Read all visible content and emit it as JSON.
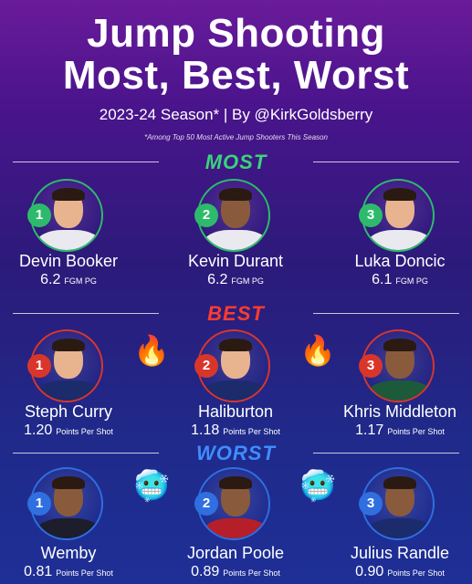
{
  "header": {
    "title_line1": "Jump Shooting",
    "title_line2": "Most, Best, Worst",
    "subtitle": "2023-24 Season* | By @KirkGoldsberry",
    "footnote": "*Among Top 50 Most Active Jump  Shooters This Season"
  },
  "sections": {
    "most": {
      "label": "MOST",
      "color": "#39d47a",
      "players": [
        {
          "rank": "1",
          "name": "Devin Booker",
          "value": "6.2",
          "unit": "FGM PG"
        },
        {
          "rank": "2",
          "name": "Kevin Durant",
          "value": "6.2",
          "unit": "FGM PG"
        },
        {
          "rank": "3",
          "name": "Luka Doncic",
          "value": "6.1",
          "unit": "FGM PG"
        }
      ]
    },
    "best": {
      "label": "BEST",
      "color": "#ff3b2f",
      "players": [
        {
          "rank": "1",
          "name": "Steph Curry",
          "value": "1.20",
          "unit": "Points Per Shot"
        },
        {
          "rank": "2",
          "name": "Haliburton",
          "value": "1.18",
          "unit": "Points Per Shot"
        },
        {
          "rank": "3",
          "name": "Khris Middleton",
          "value": "1.17",
          "unit": "Points Per Shot"
        }
      ],
      "emoji": "🔥"
    },
    "worst": {
      "label": "WORST",
      "color": "#3f8cff",
      "players": [
        {
          "rank": "1",
          "name": "Wemby",
          "value": "0.81",
          "unit": "Points Per Shot"
        },
        {
          "rank": "2",
          "name": "Jordan Poole",
          "value": "0.89",
          "unit": "Points Per Shot"
        },
        {
          "rank": "3",
          "name": "Julius Randle",
          "value": "0.90",
          "unit": "Points Per Shot"
        }
      ],
      "emoji": "🥶"
    }
  },
  "icons": [
    "fire-icon",
    "cold-face-icon"
  ]
}
